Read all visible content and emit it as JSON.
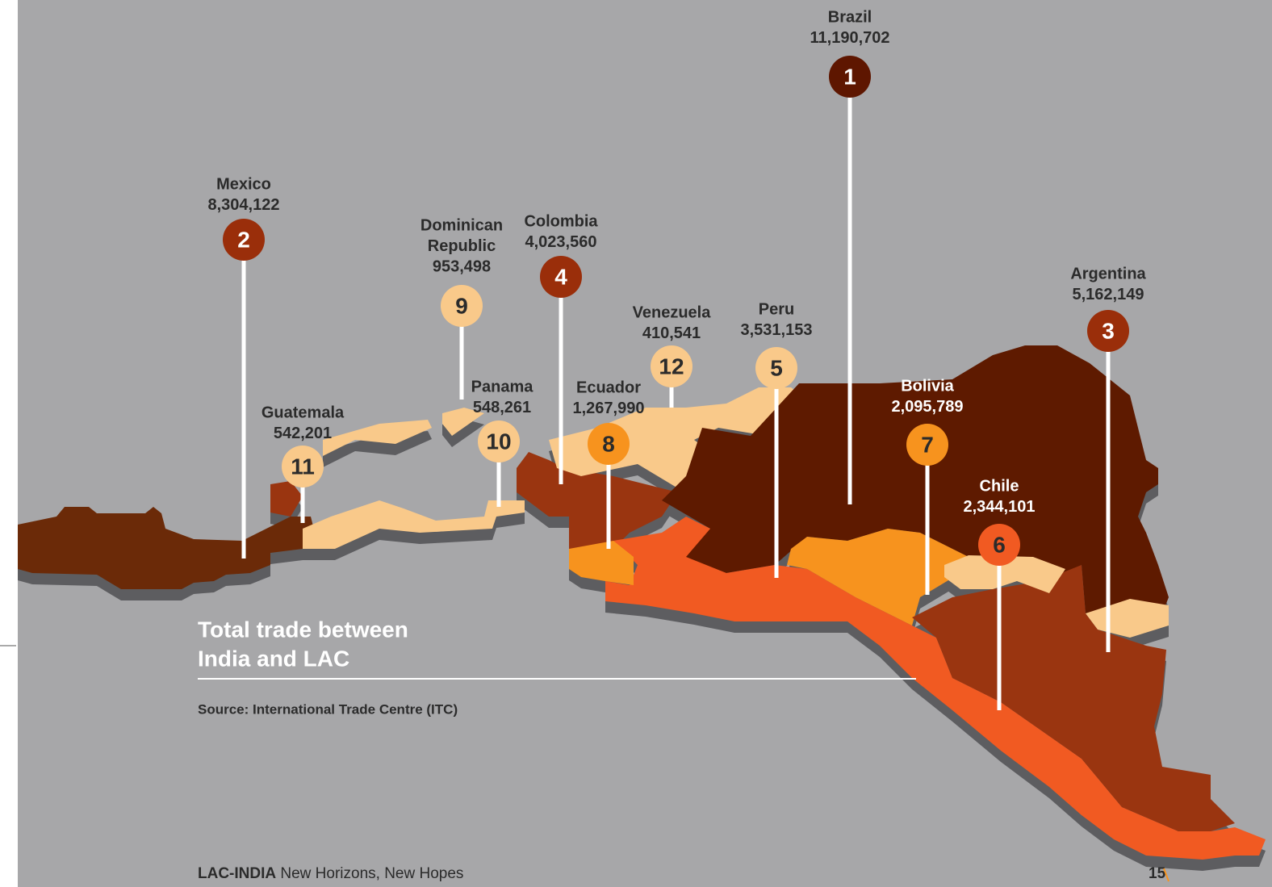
{
  "title_lines": [
    "Total trade between",
    "India and LAC"
  ],
  "source": "Source: International Trade Centre (ITC)",
  "footer": {
    "brand": "LAC-INDIA",
    "tagline": "New Horizons, New Hopes",
    "page": 15
  },
  "countries": [
    {
      "rank": 1,
      "name_lines": [
        "Brazil"
      ],
      "value": "11,190,702"
    },
    {
      "rank": 2,
      "name_lines": [
        "Mexico"
      ],
      "value": "8,304,122"
    },
    {
      "rank": 3,
      "name_lines": [
        "Argentina"
      ],
      "value": "5,162,149"
    },
    {
      "rank": 4,
      "name_lines": [
        "Colombia"
      ],
      "value": "4,023,560"
    },
    {
      "rank": 5,
      "name_lines": [
        "Peru"
      ],
      "value": "3,531,153"
    },
    {
      "rank": 6,
      "name_lines": [
        "Chile"
      ],
      "value": "2,344,101"
    },
    {
      "rank": 7,
      "name_lines": [
        "Bolivia"
      ],
      "value": "2,095,789"
    },
    {
      "rank": 8,
      "name_lines": [
        "Ecuador"
      ],
      "value": "1,267,990"
    },
    {
      "rank": 9,
      "name_lines": [
        "Dominican",
        "Republic"
      ],
      "value": "953,498"
    },
    {
      "rank": 10,
      "name_lines": [
        "Panama"
      ],
      "value": "548,261"
    },
    {
      "rank": 11,
      "name_lines": [
        "Guatemala"
      ],
      "value": "542,201"
    },
    {
      "rank": 12,
      "name_lines": [
        "Venezuela"
      ],
      "value": "410,541"
    }
  ]
}
